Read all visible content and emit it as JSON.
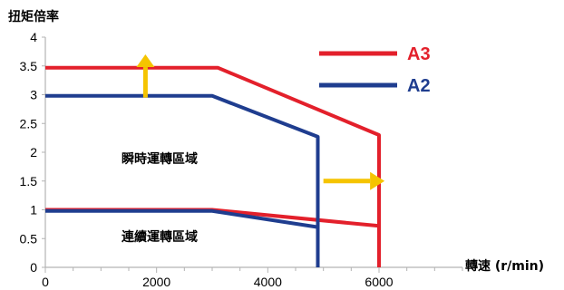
{
  "chart_data": {
    "type": "line",
    "title": "",
    "ylabel": "扭矩倍率",
    "xlabel": "轉速 (r/min)",
    "xlim": [
      0,
      7500
    ],
    "ylim": [
      0,
      4
    ],
    "x_ticks": [
      0,
      2000,
      4000,
      6000
    ],
    "y_ticks": [
      0,
      0.5,
      1,
      1.5,
      2,
      2.5,
      3,
      3.5,
      4
    ],
    "x_tick_labels": [
      "0",
      "2000",
      "4000",
      "6000"
    ],
    "y_tick_labels": [
      "0",
      "0.5",
      "1",
      "1.5",
      "2",
      "2.5",
      "3",
      "3.5",
      "4"
    ],
    "grid": false,
    "legend_position": "top-right",
    "series": [
      {
        "name": "A3",
        "color": "#e3202b",
        "x": [
          0,
          3100,
          6000,
          6000
        ],
        "y": [
          3.47,
          3.47,
          2.3,
          0
        ]
      },
      {
        "name": "A3",
        "color": "#e3202b",
        "x": [
          0,
          3000,
          6000
        ],
        "y": [
          1.0,
          1.0,
          0.72
        ]
      },
      {
        "name": "A2",
        "color": "#1f3d8f",
        "x": [
          0,
          3000,
          4900,
          4900
        ],
        "y": [
          2.98,
          2.98,
          2.27,
          0
        ]
      },
      {
        "name": "A2",
        "color": "#1f3d8f",
        "x": [
          0,
          3000,
          4900
        ],
        "y": [
          0.98,
          0.98,
          0.7
        ]
      }
    ],
    "legend": [
      {
        "label": "A3",
        "color": "#e3202b"
      },
      {
        "label": "A2",
        "color": "#1f3d8f"
      }
    ],
    "annotations": [
      {
        "text": "瞬時運轉區域"
      },
      {
        "text": "連續運轉區域"
      }
    ],
    "arrows": [
      {
        "direction": "up",
        "color": "#f5c400",
        "x_data": 1800,
        "y_from": 2.95,
        "y_to": 3.7
      },
      {
        "direction": "right",
        "color": "#f5c400",
        "y_data": 1.5,
        "x_from": 5000,
        "x_to": 6100
      }
    ]
  }
}
